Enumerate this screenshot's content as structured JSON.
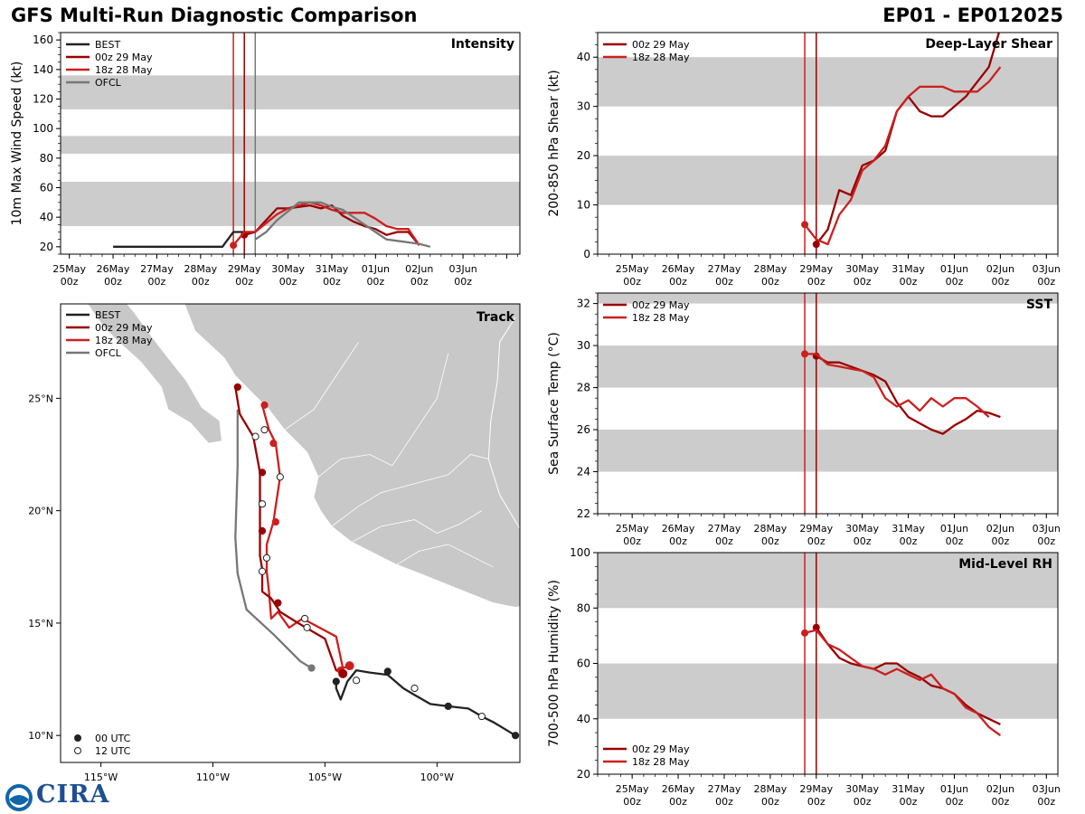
{
  "header": {
    "title_left": "GFS Multi-Run Diagnostic Comparison",
    "title_right": "EP01 - EP012025",
    "logo_text": "CIRA"
  },
  "colors": {
    "best": "#222222",
    "run00z": "#990000",
    "run18z": "#cc1f1f",
    "ofcl": "#777777",
    "band": "#cccccc",
    "land": "#c8c8c8"
  },
  "chart_data": [
    {
      "id": "intensity",
      "type": "line",
      "title": "Intensity",
      "ylabel": "10m Max Wind Speed (kt)",
      "ylim": [
        15,
        165
      ],
      "xlim": [
        -4.2,
        6.3
      ],
      "yticks": [
        20,
        40,
        60,
        80,
        100,
        120,
        140,
        160
      ],
      "xticks": [
        -4,
        -3,
        -2,
        -1,
        0,
        1,
        2,
        3,
        4,
        5,
        6
      ],
      "xticklabels": [
        [
          "25May",
          "00z"
        ],
        [
          "26May",
          "00z"
        ],
        [
          "27May",
          "00z"
        ],
        [
          "28May",
          "00z"
        ],
        [
          "29May",
          "00z"
        ],
        [
          "30May",
          "00z"
        ],
        [
          "31May",
          "00z"
        ],
        [
          "01Jun",
          "00z"
        ],
        [
          "02Jun",
          "00z"
        ],
        [
          "03Jun",
          "00z"
        ],
        [
          "",
          ""
        ]
      ],
      "bands": [
        [
          34,
          64
        ],
        [
          83,
          95
        ],
        [
          113,
          136
        ]
      ],
      "vlines": [
        {
          "x": -0.25,
          "series": "run18z"
        },
        {
          "x": 0,
          "series": "run00z"
        },
        {
          "x": 0.25,
          "series": "ofcl"
        }
      ],
      "legend": [
        "BEST",
        "00z 29 May",
        "18z 28 May",
        "OFCL"
      ],
      "series": [
        {
          "key": "best",
          "name": "BEST",
          "x": [
            -3,
            -2.5,
            -2,
            -1.5,
            -1,
            -0.5,
            -0.25,
            0,
            0.25
          ],
          "y": [
            20,
            20,
            20,
            20,
            20,
            20,
            30,
            30,
            30
          ]
        },
        {
          "key": "run00z",
          "name": "00z 29 May",
          "x": [
            0,
            0.25,
            0.5,
            0.75,
            1,
            1.25,
            1.5,
            1.75,
            2,
            2.25,
            2.5,
            2.75,
            3,
            3.25,
            3.5,
            3.75,
            4
          ],
          "y": [
            28,
            30,
            38,
            46,
            46,
            47,
            48,
            46,
            48,
            41,
            37,
            34,
            32,
            28,
            30,
            30,
            21
          ],
          "marker": true
        },
        {
          "key": "run18z",
          "name": "18z 28 May",
          "x": [
            -0.25,
            0,
            0.25,
            0.5,
            0.75,
            1,
            1.25,
            1.5,
            1.75,
            2,
            2.25,
            2.5,
            2.75,
            3,
            3.25,
            3.5,
            3.75,
            4
          ],
          "y": [
            21,
            30,
            30,
            36,
            42,
            46,
            48,
            50,
            48,
            45,
            43,
            43,
            43,
            39,
            34,
            32,
            32,
            21
          ],
          "marker": true
        },
        {
          "key": "ofcl",
          "name": "OFCL",
          "x": [
            0.25,
            0.5,
            0.75,
            1,
            1.25,
            1.5,
            1.75,
            2,
            2.25,
            2.5,
            2.75,
            3,
            3.25,
            3.5,
            4,
            4.25
          ],
          "y": [
            25,
            30,
            38,
            44,
            50,
            50,
            50,
            47,
            45,
            40,
            35,
            30,
            25,
            24,
            22,
            20
          ]
        }
      ]
    },
    {
      "id": "shear",
      "type": "line",
      "title": "Deep-Layer Shear",
      "ylabel": "200-850 hPa Shear (kt)",
      "ylim": [
        0,
        45
      ],
      "xlim": [
        -4.75,
        5.25
      ],
      "yticks": [
        0,
        10,
        20,
        30,
        40
      ],
      "xticks": [
        -4,
        -3,
        -2,
        -1,
        0,
        1,
        2,
        3,
        4,
        5
      ],
      "xticklabels": [
        [
          "25May",
          "00z"
        ],
        [
          "26May",
          "00z"
        ],
        [
          "27May",
          "00z"
        ],
        [
          "28May",
          "00z"
        ],
        [
          "29May",
          "00z"
        ],
        [
          "30May",
          "00z"
        ],
        [
          "31May",
          "00z"
        ],
        [
          "01Jun",
          "00z"
        ],
        [
          "02Jun",
          "00z"
        ],
        [
          "03Jun",
          "00z"
        ]
      ],
      "bands": [
        [
          10,
          20
        ],
        [
          30,
          40
        ]
      ],
      "vlines": [
        {
          "x": -0.25,
          "series": "run18z"
        },
        {
          "x": 0,
          "series": "run00z"
        }
      ],
      "legend": [
        "00z 29 May",
        "18z 28 May"
      ],
      "series": [
        {
          "key": "run00z",
          "name": "00z 29 May",
          "x": [
            0,
            0.25,
            0.5,
            0.75,
            1,
            1.25,
            1.5,
            1.75,
            2,
            2.25,
            2.5,
            2.75,
            3,
            3.25,
            3.5,
            3.75,
            4
          ],
          "y": [
            2,
            5,
            13,
            12,
            18,
            19,
            21,
            29,
            32,
            29,
            28,
            28,
            30,
            32,
            35,
            38,
            46
          ],
          "marker": true
        },
        {
          "key": "run18z",
          "name": "18z 28 May",
          "x": [
            -0.25,
            0,
            0.25,
            0.5,
            0.75,
            1,
            1.25,
            1.5,
            1.75,
            2,
            2.25,
            2.5,
            2.75,
            3,
            3.25,
            3.5,
            3.75,
            4
          ],
          "y": [
            6,
            3,
            2,
            8,
            11,
            17,
            19,
            22,
            29,
            32,
            34,
            34,
            34,
            33,
            33,
            33,
            35,
            38
          ],
          "marker": true
        }
      ]
    },
    {
      "id": "sst",
      "type": "line",
      "title": "SST",
      "ylabel": "Sea Surface Temp (°C)",
      "ylim": [
        22,
        32.5
      ],
      "xlim": [
        -4.75,
        5.25
      ],
      "yticks": [
        22,
        24,
        26,
        28,
        30,
        32
      ],
      "xticks": [
        -4,
        -3,
        -2,
        -1,
        0,
        1,
        2,
        3,
        4,
        5
      ],
      "xticklabels": [
        [
          "25May",
          "00z"
        ],
        [
          "26May",
          "00z"
        ],
        [
          "27May",
          "00z"
        ],
        [
          "28May",
          "00z"
        ],
        [
          "29May",
          "00z"
        ],
        [
          "30May",
          "00z"
        ],
        [
          "31May",
          "00z"
        ],
        [
          "01Jun",
          "00z"
        ],
        [
          "02Jun",
          "00z"
        ],
        [
          "03Jun",
          "00z"
        ]
      ],
      "bands": [
        [
          24,
          26
        ],
        [
          28,
          30
        ],
        [
          32,
          34
        ]
      ],
      "vlines": [
        {
          "x": -0.25,
          "series": "run18z"
        },
        {
          "x": 0,
          "series": "run00z"
        }
      ],
      "legend": [
        "00z 29 May",
        "18z 28 May"
      ],
      "series": [
        {
          "key": "run00z",
          "name": "00z 29 May",
          "x": [
            0,
            0.25,
            0.5,
            0.75,
            1,
            1.25,
            1.5,
            1.75,
            2,
            2.25,
            2.5,
            2.75,
            3,
            3.25,
            3.5,
            3.75,
            4
          ],
          "y": [
            29.5,
            29.2,
            29.2,
            29.0,
            28.8,
            28.6,
            28.3,
            27.3,
            26.6,
            26.3,
            26.0,
            25.8,
            26.2,
            26.5,
            26.9,
            26.8,
            26.6
          ],
          "marker": true
        },
        {
          "key": "run18z",
          "name": "18z 28 May",
          "x": [
            -0.25,
            0,
            0.25,
            0.5,
            0.75,
            1,
            1.25,
            1.5,
            1.75,
            2,
            2.25,
            2.5,
            2.75,
            3,
            3.25,
            3.5,
            3.75
          ],
          "y": [
            29.6,
            29.6,
            29.1,
            29.0,
            28.9,
            28.8,
            28.5,
            27.5,
            27.1,
            27.4,
            26.9,
            27.5,
            27.1,
            27.5,
            27.5,
            27.1,
            26.6
          ],
          "marker": true
        }
      ]
    },
    {
      "id": "rh",
      "type": "line",
      "title": "Mid-Level RH",
      "ylabel": "700-500 hPa Humidity (%)",
      "ylim": [
        20,
        100
      ],
      "xlim": [
        -4.75,
        5.25
      ],
      "yticks": [
        20,
        40,
        60,
        80,
        100
      ],
      "xticks": [
        -4,
        -3,
        -2,
        -1,
        0,
        1,
        2,
        3,
        4,
        5
      ],
      "xticklabels": [
        [
          "25May",
          "00z"
        ],
        [
          "26May",
          "00z"
        ],
        [
          "27May",
          "00z"
        ],
        [
          "28May",
          "00z"
        ],
        [
          "29May",
          "00z"
        ],
        [
          "30May",
          "00z"
        ],
        [
          "31May",
          "00z"
        ],
        [
          "01Jun",
          "00z"
        ],
        [
          "02Jun",
          "00z"
        ],
        [
          "03Jun",
          "00z"
        ]
      ],
      "bands": [
        [
          40,
          60
        ],
        [
          80,
          100
        ]
      ],
      "vlines": [
        {
          "x": -0.25,
          "series": "run18z"
        },
        {
          "x": 0,
          "series": "run00z"
        }
      ],
      "legend": [
        "00z 29 May",
        "18z 28 May"
      ],
      "series": [
        {
          "key": "run00z",
          "name": "00z 29 May",
          "x": [
            0,
            0.25,
            0.5,
            0.75,
            1,
            1.25,
            1.5,
            1.75,
            2,
            2.25,
            2.5,
            2.75,
            3,
            3.25,
            3.5,
            3.75,
            4
          ],
          "y": [
            73,
            67,
            62,
            60,
            59,
            58,
            60,
            60,
            57,
            55,
            52,
            51,
            49,
            45,
            42,
            40,
            38
          ],
          "marker": true
        },
        {
          "key": "run18z",
          "name": "18z 28 May",
          "x": [
            -0.25,
            0,
            0.25,
            0.5,
            0.75,
            1,
            1.25,
            1.5,
            1.75,
            2,
            2.25,
            2.5,
            2.75,
            3,
            3.25,
            3.5,
            3.75,
            4
          ],
          "y": [
            71,
            72,
            67,
            65,
            62,
            59,
            58,
            56,
            58,
            56,
            54,
            56,
            51,
            49,
            44,
            42,
            37,
            34
          ],
          "marker": true
        }
      ]
    },
    {
      "id": "track",
      "type": "scatter",
      "title": "Track",
      "lon_range": [
        -116.8,
        -96.3
      ],
      "lat_range": [
        8.8,
        29.2
      ],
      "xticks": [
        -115,
        -110,
        -105,
        -100
      ],
      "xticklabels": [
        "115°W",
        "110°W",
        "105°W",
        "100°W"
      ],
      "yticks": [
        10,
        15,
        20,
        25
      ],
      "yticklabels": [
        "10°N",
        "15°N",
        "20°N",
        "25°N"
      ],
      "legend": [
        "BEST",
        "00z 29 May",
        "18z 28 May",
        "OFCL"
      ],
      "marker_legend": [
        "00 UTC",
        "12 UTC"
      ],
      "series": [
        {
          "key": "best",
          "name": "BEST",
          "lon": [
            -96.5,
            -97.0,
            -97.5,
            -98.0,
            -98.6,
            -99.5,
            -100.3,
            -101.0,
            -101.5,
            -102.2,
            -103.0,
            -103.6,
            -104.0,
            -104.3,
            -104.5,
            -104.5
          ],
          "lat": [
            10.0,
            10.3,
            10.6,
            10.85,
            11.2,
            11.3,
            11.4,
            11.8,
            12.1,
            12.7,
            12.8,
            12.9,
            12.4,
            11.6,
            12.1,
            12.4
          ],
          "points": [
            {
              "lon": -96.5,
              "lat": 10.0,
              "utc": 0
            },
            {
              "lon": -98.0,
              "lat": 10.85,
              "utc": 12
            },
            {
              "lon": -99.5,
              "lat": 11.3,
              "utc": 0
            },
            {
              "lon": -101.0,
              "lat": 12.1,
              "utc": 12
            },
            {
              "lon": -102.2,
              "lat": 12.85,
              "utc": 0
            },
            {
              "lon": -103.6,
              "lat": 12.45,
              "utc": 12
            },
            {
              "lon": -104.5,
              "lat": 12.4,
              "utc": 0
            }
          ]
        },
        {
          "key": "run00z",
          "name": "00z 29 May",
          "lon": [
            -104.2,
            -104.5,
            -105.0,
            -106.2,
            -107.0,
            -107.4,
            -107.8,
            -107.8,
            -107.9,
            -107.9,
            -107.9,
            -107.9,
            -108.2,
            -108.8,
            -109.0
          ],
          "lat": [
            12.8,
            12.9,
            14.3,
            15.0,
            15.5,
            16.1,
            16.4,
            17.4,
            18.0,
            19.0,
            20.3,
            21.7,
            23.3,
            24.3,
            25.5
          ],
          "points": [
            {
              "lon": -104.2,
              "lat": 12.75,
              "utc": 0
            },
            {
              "lon": -107.1,
              "lat": 15.9,
              "utc": 0
            },
            {
              "lon": -107.8,
              "lat": 17.3,
              "utc": 12
            },
            {
              "lon": -107.8,
              "lat": 19.1,
              "utc": 0
            },
            {
              "lon": -107.8,
              "lat": 20.3,
              "utc": 12
            },
            {
              "lon": -107.8,
              "lat": 21.7,
              "utc": 0
            },
            {
              "lon": -108.1,
              "lat": 23.3,
              "utc": 12
            },
            {
              "lon": -108.9,
              "lat": 25.5,
              "utc": 0
            }
          ]
        },
        {
          "key": "run18z",
          "name": "18z 28 May",
          "lon": [
            -103.9,
            -104.2,
            -104.5,
            -106.0,
            -106.6,
            -107.1,
            -107.4,
            -107.5,
            -107.6,
            -107.6,
            -107.3,
            -107.2,
            -107.0,
            -107.2,
            -107.5,
            -107.8
          ],
          "lat": [
            13.1,
            13.0,
            14.4,
            15.2,
            14.8,
            15.5,
            15.2,
            16.4,
            17.3,
            18.5,
            19.5,
            20.2,
            21.5,
            23.0,
            23.6,
            24.7
          ],
          "points": [
            {
              "lon": -103.9,
              "lat": 13.1,
              "utc": 0
            },
            {
              "lon": -104.3,
              "lat": 12.9,
              "utc": 0
            },
            {
              "lon": -105.9,
              "lat": 15.2,
              "utc": 12
            },
            {
              "lon": -105.8,
              "lat": 14.8,
              "utc": 12
            },
            {
              "lon": -107.6,
              "lat": 17.9,
              "utc": 12
            },
            {
              "lon": -107.2,
              "lat": 19.5,
              "utc": 0
            },
            {
              "lon": -107.0,
              "lat": 21.5,
              "utc": 12
            },
            {
              "lon": -107.3,
              "lat": 23.0,
              "utc": 0
            },
            {
              "lon": -107.7,
              "lat": 23.6,
              "utc": 12
            },
            {
              "lon": -107.7,
              "lat": 24.7,
              "utc": 0
            }
          ]
        },
        {
          "key": "ofcl",
          "name": "OFCL",
          "lon": [
            -105.6,
            -106.1,
            -107.3,
            -108.5,
            -108.9,
            -109.0,
            -108.9,
            -108.9
          ],
          "lat": [
            13.0,
            13.3,
            14.5,
            15.6,
            17.2,
            18.8,
            22.0,
            24.5
          ],
          "points": [
            {
              "lon": -105.6,
              "lat": 13.0,
              "utc": 0
            }
          ]
        }
      ]
    }
  ]
}
